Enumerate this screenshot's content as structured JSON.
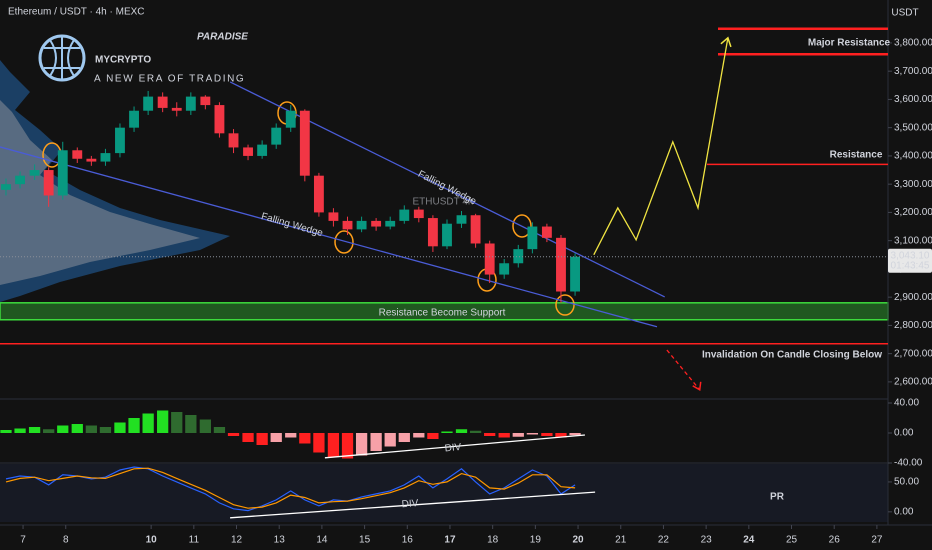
{
  "header": {
    "symbol": "Ethereum / USDT · 4h · MEXC"
  },
  "logo": {
    "name": "MYCRYPTO",
    "tag": "PARADISE",
    "slogan": "A NEW ERA OF TRADING"
  },
  "badge": "PR",
  "chart_data": [
    {
      "type": "candlestick",
      "watermark": "ETHUSDT 4h",
      "currency": "USDT",
      "up_color": "#089981",
      "down_color": "#f23645",
      "x": [
        6.6,
        6.93,
        7.27,
        7.6,
        7.93,
        8.27,
        8.6,
        8.93,
        9.27,
        9.6,
        9.93,
        10.27,
        10.6,
        10.93,
        11.27,
        11.6,
        11.93,
        12.27,
        12.6,
        12.93,
        13.27,
        13.6,
        13.93,
        14.27,
        14.6,
        14.93,
        15.27,
        15.6,
        15.93,
        16.27,
        16.6,
        16.93,
        17.27,
        17.6,
        17.93,
        18.27,
        18.6,
        18.93,
        19.27,
        19.6,
        19.93
      ],
      "open": [
        3280,
        3300,
        3330,
        3350,
        3260,
        3420,
        3390,
        3380,
        3410,
        3500,
        3560,
        3610,
        3570,
        3560,
        3610,
        3580,
        3480,
        3430,
        3400,
        3440,
        3500,
        3560,
        3330,
        3200,
        3170,
        3140,
        3170,
        3150,
        3170,
        3210,
        3180,
        3080,
        3160,
        3190,
        3090,
        2980,
        3020,
        3070,
        3150,
        3110,
        2920
      ],
      "high": [
        3320,
        3345,
        3370,
        3360,
        3450,
        3430,
        3400,
        3425,
        3515,
        3575,
        3630,
        3625,
        3590,
        3625,
        3615,
        3590,
        3495,
        3440,
        3455,
        3515,
        3580,
        3565,
        3340,
        3215,
        3185,
        3185,
        3180,
        3185,
        3225,
        3220,
        3190,
        3175,
        3205,
        3195,
        3100,
        3035,
        3085,
        3165,
        3160,
        3120,
        3055
      ],
      "low": [
        3260,
        3285,
        3315,
        3220,
        3245,
        3375,
        3365,
        3365,
        3395,
        3485,
        3545,
        3555,
        3540,
        3545,
        3565,
        3465,
        3410,
        3385,
        3390,
        3425,
        3485,
        3310,
        3185,
        3150,
        3120,
        3130,
        3135,
        3140,
        3160,
        3165,
        3060,
        3070,
        3145,
        3075,
        2950,
        2965,
        3005,
        3055,
        3095,
        2880,
        2905
      ],
      "close": [
        3300,
        3330,
        3350,
        3260,
        3420,
        3390,
        3380,
        3410,
        3500,
        3560,
        3610,
        3570,
        3560,
        3610,
        3580,
        3480,
        3430,
        3400,
        3440,
        3500,
        3560,
        3330,
        3200,
        3170,
        3140,
        3170,
        3150,
        3170,
        3210,
        3180,
        3080,
        3160,
        3190,
        3090,
        2980,
        3020,
        3070,
        3150,
        3110,
        2920,
        3043.1
      ],
      "last_price_label": "3,043.10",
      "countdown": "01:43:45",
      "xlim": [
        6.46,
        27.26
      ],
      "xticks": [
        7,
        8,
        10,
        11,
        12,
        13,
        14,
        15,
        16,
        17,
        18,
        19,
        20,
        21,
        22,
        23,
        24,
        25,
        26,
        27
      ],
      "ylim": [
        2543,
        3952
      ],
      "yticks": [
        {
          "value": 2600,
          "label": "2,600.00"
        },
        {
          "value": 2700,
          "label": "2,700.00"
        },
        {
          "value": 2800,
          "label": "2,800.00"
        },
        {
          "value": 2900,
          "label": "2,900.00"
        },
        {
          "value": 3000,
          "label": "3,000.00"
        },
        {
          "value": 3100,
          "label": "3,100.00"
        },
        {
          "value": 3200,
          "label": "3,200.00"
        },
        {
          "value": 3300,
          "label": "3,300.00"
        },
        {
          "value": 3400,
          "label": "3,400.00"
        },
        {
          "value": 3500,
          "label": "3,500.00"
        },
        {
          "value": 3600,
          "label": "3,600.00"
        },
        {
          "value": 3700,
          "label": "3,700.00"
        },
        {
          "value": 3800,
          "label": "3,800.00"
        }
      ],
      "annotations": {
        "support_zone": {
          "range": [
            2820,
            2880
          ],
          "label": "Resistance Become Support",
          "color": "#3ddc3d"
        },
        "invalidation": {
          "level": 2735,
          "label": "Invalidation On Candle Closing Below",
          "color": "#ff2020"
        },
        "major_resistance": {
          "levels": [
            3760,
            3850
          ],
          "label": "Major Resistance",
          "color": "#ff2020"
        },
        "resistance": {
          "level": 3370,
          "label": "Resistance",
          "color": "#ff2020"
        },
        "wedge_upper": {
          "x": [
            11.85,
            22.03
          ],
          "y": [
            3662,
            2901
          ],
          "label": "Falling Wedge",
          "color": "#4a5cd6"
        },
        "wedge_lower": {
          "x": [
            6.46,
            21.85
          ],
          "y": [
            3432,
            2795
          ],
          "label": "Falling Wedge",
          "color": "#4a5cd6"
        },
        "projection": {
          "x": [
            20.37,
            20.93,
            21.36,
            22.22,
            22.81,
            23.51
          ],
          "y": [
            3050,
            3216,
            3103,
            3450,
            3216,
            3818
          ],
          "color": "#f0e442"
        },
        "invalidation_arrow": {
          "x": [
            22.08,
            22.85
          ],
          "y": [
            2713,
            2572
          ],
          "color": "#ff2020"
        }
      }
    },
    {
      "type": "bar",
      "values": [
        4,
        6,
        8,
        5,
        10,
        12,
        10,
        8,
        14,
        20,
        26,
        30,
        28,
        24,
        18,
        8,
        -4,
        -12,
        -16,
        -12,
        -6,
        -14,
        -26,
        -32,
        -34,
        -30,
        -24,
        -18,
        -12,
        -6,
        -8,
        2,
        5,
        3,
        -4,
        -6,
        -5,
        -2,
        -4,
        -6,
        -3
      ],
      "colors": [
        "#22e022",
        "#2f6b2f",
        "#ff2020",
        "#f7a1a8"
      ],
      "ylim": [
        -40,
        44
      ],
      "yticks": [
        {
          "value": 40,
          "label": "40.00"
        },
        {
          "value": 0,
          "label": "0.00"
        },
        {
          "value": -40,
          "label": "-40.00"
        }
      ],
      "divergence": {
        "x": [
          14.07,
          20.16
        ],
        "y": [
          -33,
          -2.7
        ],
        "label": "DIV",
        "color": "#ffffff"
      }
    },
    {
      "type": "line",
      "series": [
        {
          "color": "#2962ff",
          "values": [
            55,
            60,
            58,
            45,
            62,
            60,
            55,
            58,
            70,
            75,
            72,
            60,
            50,
            40,
            30,
            15,
            5,
            2,
            10,
            20,
            35,
            20,
            10,
            20,
            18,
            25,
            30,
            35,
            45,
            60,
            40,
            55,
            72,
            50,
            30,
            40,
            55,
            70,
            60,
            30,
            45
          ]
        },
        {
          "color": "#ff9800",
          "values": [
            50,
            56,
            58,
            52,
            56,
            60,
            57,
            56,
            64,
            72,
            73,
            66,
            56,
            46,
            36,
            24,
            12,
            6,
            8,
            15,
            28,
            24,
            15,
            17,
            18,
            22,
            27,
            32,
            40,
            52,
            46,
            50,
            64,
            58,
            40,
            38,
            48,
            62,
            62,
            42,
            40
          ]
        }
      ],
      "ylim": [
        -17,
        80
      ],
      "yticks": [
        {
          "value": 50,
          "label": "50.00"
        },
        {
          "value": 0,
          "label": "0.00"
        }
      ],
      "divergence": {
        "x": [
          11.85,
          20.4
        ],
        "y": [
          -10,
          33
        ],
        "label": "DIV",
        "color": "#ffffff"
      }
    }
  ]
}
